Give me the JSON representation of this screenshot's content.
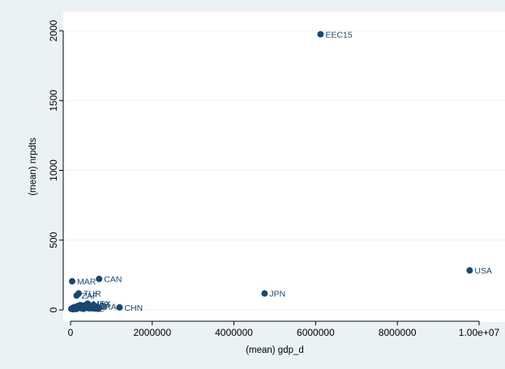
{
  "chart_data": {
    "type": "scatter",
    "title": "",
    "xlabel": "(mean) gdp_d",
    "ylabel": "(mean) nrpdts",
    "xlim": [
      -120000,
      10300000
    ],
    "ylim": [
      -60,
      2050
    ],
    "x_ticks": [
      0,
      2000000,
      4000000,
      6000000,
      8000000,
      10000000
    ],
    "x_tick_labels": [
      "0",
      "2000000",
      "4000000",
      "6000000",
      "8000000",
      "1.00e+07"
    ],
    "y_ticks": [
      0,
      500,
      1000,
      1500,
      2000
    ],
    "y_tick_labels": [
      "0",
      "500",
      "1000",
      "1500",
      "2000"
    ],
    "grid": "horizontal",
    "legend": "none",
    "colors": {
      "outer_background": "#eaf2f3",
      "plot_background": "#ffffff",
      "marker": "#1a476f",
      "label": "#1a476f",
      "grid": "#eaf2f3",
      "axis": "#000000"
    },
    "points": [
      {
        "label": "EEC15",
        "x": 6120000,
        "y": 1975
      },
      {
        "label": "USA",
        "x": 9770000,
        "y": 283
      },
      {
        "label": "CAN",
        "x": 700000,
        "y": 222
      },
      {
        "label": "MAR",
        "x": 40000,
        "y": 205
      },
      {
        "label": "JPN",
        "x": 4750000,
        "y": 118
      },
      {
        "label": "TUR",
        "x": 200000,
        "y": 118
      },
      {
        "label": "ZAF",
        "x": 150000,
        "y": 103
      },
      {
        "label": "CHN",
        "x": 1200000,
        "y": 18
      },
      {
        "label": "MEX",
        "x": 420000,
        "y": 45
      },
      {
        "label": "IND",
        "x": 380000,
        "y": 35
      },
      {
        "label": "BRA",
        "x": 580000,
        "y": 25
      },
      {
        "label": "KOR",
        "x": 300000,
        "y": 30
      },
      {
        "label": "ARG",
        "x": 330000,
        "y": 22
      },
      {
        "label": "AUS",
        "x": 400000,
        "y": 40
      },
      {
        "label": "CHE",
        "x": 260000,
        "y": 12
      },
      {
        "label": "NOR",
        "x": 160000,
        "y": 15
      },
      {
        "label": "",
        "x": 20000,
        "y": 8
      },
      {
        "label": "",
        "x": 40000,
        "y": 12
      },
      {
        "label": "",
        "x": 60000,
        "y": 5
      },
      {
        "label": "",
        "x": 80000,
        "y": 18
      },
      {
        "label": "",
        "x": 100000,
        "y": 10
      },
      {
        "label": "",
        "x": 120000,
        "y": 22
      },
      {
        "label": "",
        "x": 140000,
        "y": 6
      },
      {
        "label": "",
        "x": 180000,
        "y": 28
      },
      {
        "label": "",
        "x": 220000,
        "y": 14
      },
      {
        "label": "",
        "x": 240000,
        "y": 35
      },
      {
        "label": "",
        "x": 280000,
        "y": 20
      },
      {
        "label": "",
        "x": 320000,
        "y": 8
      },
      {
        "label": "",
        "x": 360000,
        "y": 30
      },
      {
        "label": "",
        "x": 440000,
        "y": 15
      },
      {
        "label": "",
        "x": 480000,
        "y": 26
      },
      {
        "label": "",
        "x": 520000,
        "y": 12
      },
      {
        "label": "",
        "x": 560000,
        "y": 36
      },
      {
        "label": "",
        "x": 600000,
        "y": 10
      },
      {
        "label": "",
        "x": 640000,
        "y": 20
      },
      {
        "label": "",
        "x": 680000,
        "y": 8
      }
    ]
  }
}
